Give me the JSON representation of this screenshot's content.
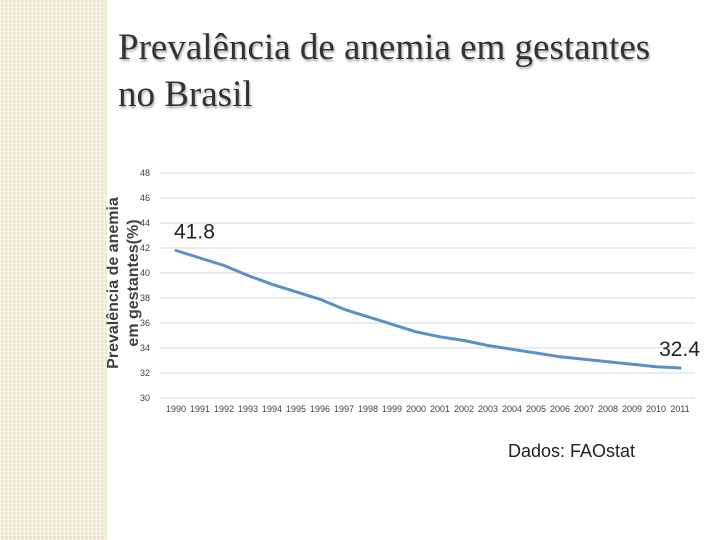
{
  "slide": {
    "title_line1": "Prevalência de anemia em gestantes",
    "title_line2": "no Brasil",
    "source": "Dados: FAOstat"
  },
  "chart_data": {
    "type": "line",
    "title": "Prevalência de anemia em gestantes no Brasil",
    "ylabel_line1": "Prevalência de anemia",
    "ylabel_line2": "em gestantes(%)",
    "xlabel": "",
    "ylim": [
      30,
      48
    ],
    "yticks": [
      30,
      32,
      34,
      36,
      38,
      40,
      42,
      44,
      46,
      48
    ],
    "grid": true,
    "legend": "none",
    "color": "#5b8fc7",
    "series": [
      {
        "name": "Prevalência de anemia em gestantes (%)",
        "x": [
          "1990",
          "1991",
          "1992",
          "1993",
          "1994",
          "1995",
          "1996",
          "1997",
          "1998",
          "1999",
          "2000",
          "2001",
          "2002",
          "2003",
          "2004",
          "2005",
          "2006",
          "2007",
          "2008",
          "2009",
          "2010",
          "2011"
        ],
        "values": [
          41.8,
          41.2,
          40.6,
          39.8,
          39.1,
          38.5,
          37.9,
          37.1,
          36.5,
          35.9,
          35.3,
          34.9,
          34.6,
          34.2,
          33.9,
          33.6,
          33.3,
          33.1,
          32.9,
          32.7,
          32.5,
          32.4
        ]
      }
    ],
    "data_labels": [
      {
        "x": "1990",
        "text": "41.8"
      },
      {
        "x": "2011",
        "text": "32.4"
      }
    ]
  }
}
